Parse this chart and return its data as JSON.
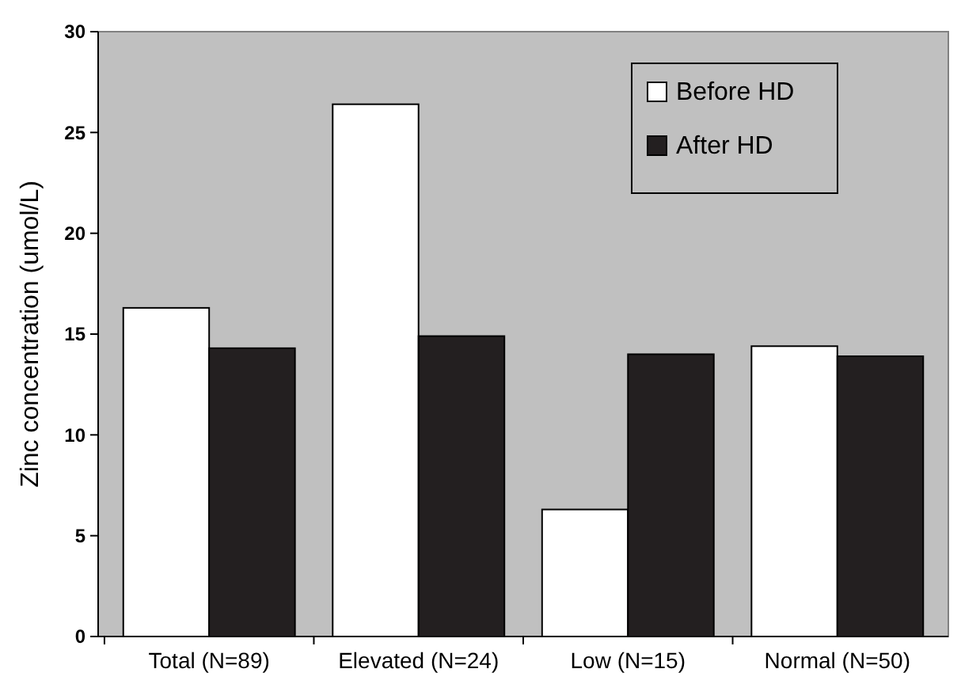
{
  "chart_data": {
    "type": "bar",
    "ylabel": "Zinc concentration (umol/L)",
    "categories": [
      "Total (N=89)",
      "Elevated (N=24)",
      "Low (N=15)",
      "Normal (N=50)"
    ],
    "series": [
      {
        "name": "Before HD",
        "color": "#ffffff",
        "values": [
          16.3,
          26.4,
          6.3,
          14.4
        ]
      },
      {
        "name": "After HD",
        "color": "#231f20",
        "values": [
          14.3,
          14.9,
          14.0,
          13.9
        ]
      }
    ],
    "ylim": [
      0,
      30
    ],
    "yticks": [
      0,
      5,
      10,
      15,
      20,
      25,
      30
    ],
    "legend": "top right"
  }
}
